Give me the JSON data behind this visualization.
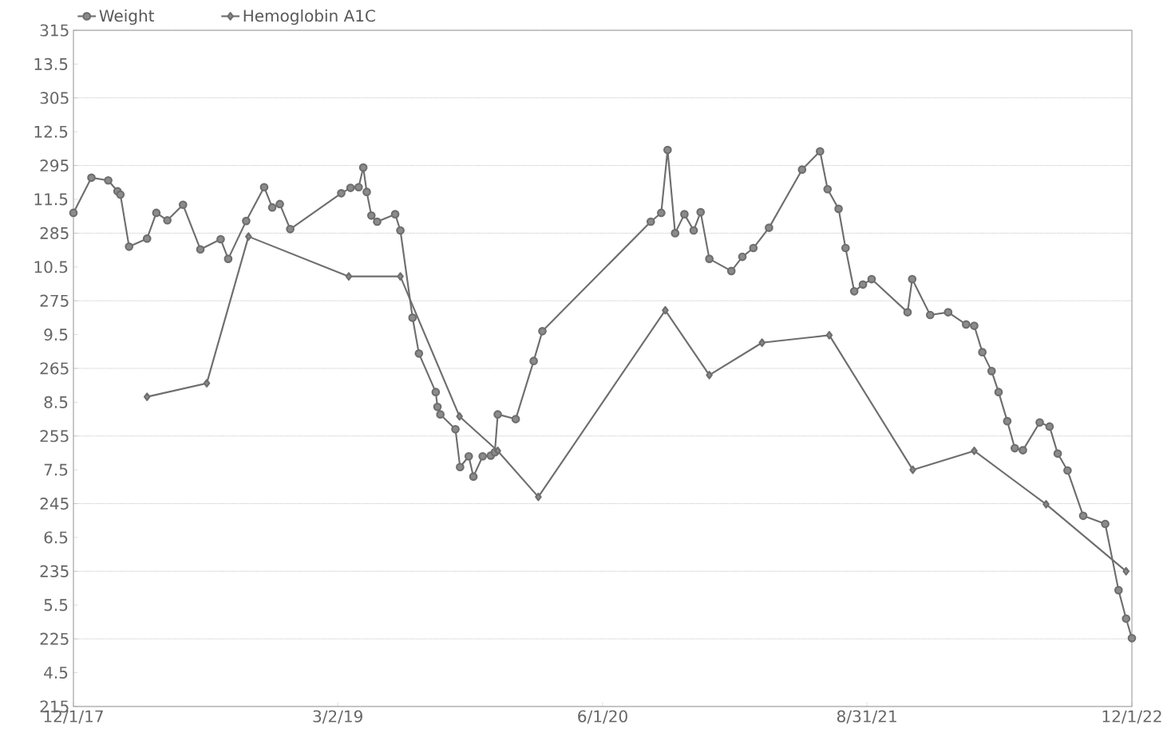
{
  "chart_data": {
    "type": "line",
    "x": [
      "2017-12-01",
      "2018-01-01",
      "2018-01-30",
      "2018-02-15",
      "2018-02-20",
      "2018-03-07",
      "2018-04-07",
      "2018-04-23",
      "2018-05-12",
      "2018-06-08",
      "2018-07-08",
      "2018-08-12",
      "2018-08-25",
      "2018-09-25",
      "2018-10-26",
      "2018-11-09",
      "2018-11-22",
      "2018-12-10",
      "2019-03-08",
      "2019-03-24",
      "2019-04-07",
      "2019-04-15",
      "2019-04-21",
      "2019-04-29",
      "2019-05-09",
      "2019-06-09",
      "2019-06-18",
      "2019-07-09",
      "2019-07-20",
      "2019-08-18",
      "2019-08-21",
      "2019-08-26",
      "2019-09-21",
      "2019-09-29",
      "2019-10-14",
      "2019-10-22",
      "2019-11-07",
      "2019-11-21",
      "2019-11-28",
      "2019-12-03",
      "2020-01-03",
      "2020-02-03",
      "2020-02-18",
      "2020-08-23",
      "2020-09-10",
      "2020-09-21",
      "2020-10-04",
      "2020-10-20",
      "2020-11-05",
      "2020-11-17",
      "2020-12-02",
      "2021-01-09",
      "2021-01-28",
      "2021-02-16",
      "2021-03-15",
      "2021-05-11",
      "2021-06-11",
      "2021-06-24",
      "2021-07-13",
      "2021-07-25",
      "2021-08-09",
      "2021-08-24",
      "2021-09-08",
      "2021-11-09",
      "2021-11-17",
      "2021-12-18",
      "2022-01-18",
      "2022-02-18",
      "2022-03-04",
      "2022-03-18",
      "2022-04-03",
      "2022-04-15",
      "2022-04-30",
      "2022-05-13",
      "2022-05-27",
      "2022-06-25",
      "2022-07-12",
      "2022-07-26",
      "2022-08-12",
      "2022-09-08",
      "2022-10-16",
      "2022-11-08",
      "2022-11-21",
      "2022-12-01"
    ],
    "series": [
      {
        "name": "Weight",
        "color": "#6e6e6e",
        "marker": "circle",
        "values": [
          288.0,
          293.2,
          292.8,
          291.2,
          290.7,
          283.0,
          284.2,
          288.0,
          286.9,
          289.2,
          282.6,
          284.1,
          281.2,
          286.8,
          291.8,
          288.8,
          289.3,
          285.6,
          290.9,
          291.7,
          291.8,
          294.7,
          291.1,
          287.6,
          286.7,
          287.8,
          285.4,
          272.5,
          267.2,
          261.5,
          259.3,
          258.2,
          256.0,
          250.4,
          252.0,
          249.0,
          252.0,
          252.1,
          252.6,
          258.2,
          257.5,
          266.1,
          270.5,
          286.7,
          288.0,
          297.3,
          285.0,
          287.8,
          285.4,
          288.1,
          281.2,
          279.4,
          281.5,
          282.8,
          285.8,
          294.4,
          297.1,
          291.5,
          288.6,
          282.8,
          276.4,
          277.4,
          278.2,
          273.3,
          278.2,
          272.9,
          273.3,
          271.5,
          271.3,
          267.4,
          264.6,
          261.5,
          257.2,
          253.2,
          252.9,
          257.0,
          256.4,
          252.4,
          249.9,
          243.2,
          242.0,
          232.2,
          228.0,
          225.1
        ]
      },
      {
        "name": "Hemoglobin A1C",
        "color": "#6e6e6e",
        "marker": "diamond",
        "axis": "y2",
        "x": [
          "2018-04-07",
          "2018-07-19",
          "2018-09-29",
          "2019-03-21",
          "2019-06-18",
          "2019-09-28",
          "2019-12-03",
          "2020-02-11",
          "2020-09-17",
          "2020-12-02",
          "2021-03-03",
          "2021-06-27",
          "2021-11-18",
          "2022-03-04",
          "2022-07-06",
          "2022-11-21"
        ],
        "values": [
          8.58,
          8.78,
          10.95,
          10.36,
          10.36,
          8.29,
          7.78,
          7.1,
          9.86,
          8.9,
          9.38,
          9.49,
          7.5,
          7.78,
          6.99,
          6.0
        ]
      }
    ],
    "xlim": [
      "2017-12-01",
      "2022-12-01"
    ],
    "xticks": [
      {
        "value": "2017-12-01",
        "label": "12/1/17"
      },
      {
        "value": "2019-03-02",
        "label": "3/2/19"
      },
      {
        "value": "2020-06-01",
        "label": "6/1/20"
      },
      {
        "value": "2021-08-31",
        "label": "8/31/21"
      },
      {
        "value": "2022-12-01",
        "label": "12/1/22"
      }
    ],
    "ylim": [
      215,
      315
    ],
    "yticks": [
      215,
      225,
      235,
      245,
      255,
      265,
      275,
      285,
      295,
      305,
      315
    ],
    "y2lim": [
      4,
      14
    ],
    "y2ticks": [
      4.5,
      5.5,
      6.5,
      7.5,
      8.5,
      9.5,
      10.5,
      11.5,
      12.5,
      13.5
    ],
    "grid": "y",
    "legend": "top left"
  }
}
